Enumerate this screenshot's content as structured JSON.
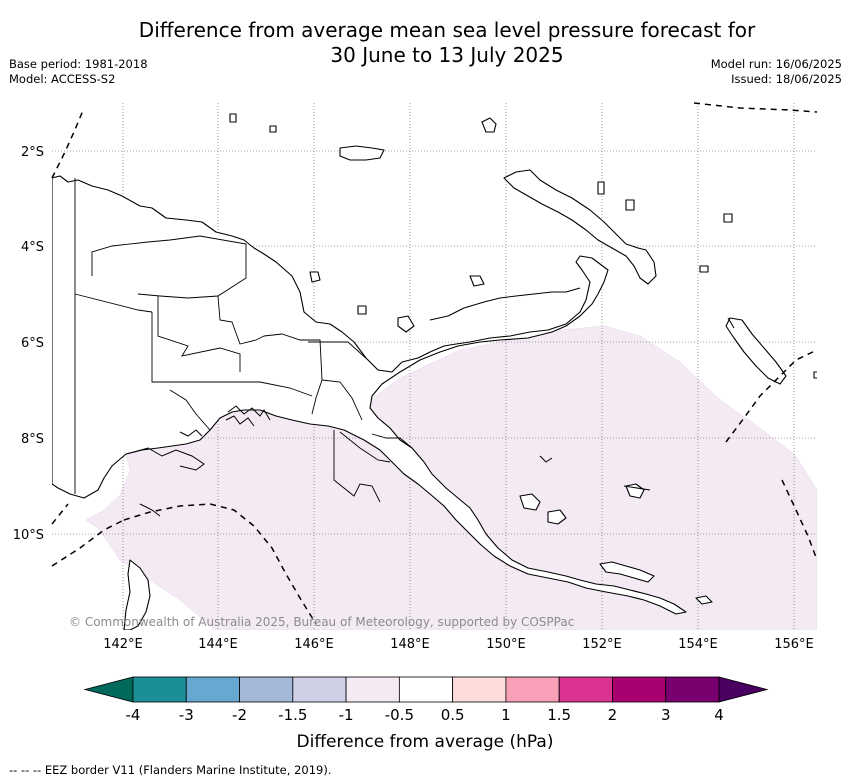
{
  "title_line1": "Difference from average mean sea level pressure forecast for",
  "title_line2": "30 June to 13 July 2025",
  "base_period": "Base period: 1981-2018",
  "model": "Model: ACCESS-S2",
  "model_run": "Model run: 16/06/2025",
  "issued": "Issued: 18/06/2025",
  "copyright": "© Commonwealth of Australia 2025, Bureau of Meteorology, supported by COSPPac",
  "latitude_labels": [
    "2°S",
    "4°S",
    "6°S",
    "8°S",
    "10°S"
  ],
  "longitude_labels": [
    "142°E",
    "144°E",
    "146°E",
    "148°E",
    "150°E",
    "152°E",
    "154°E",
    "156°E"
  ],
  "colorbar": {
    "label": "Difference from average (hPa)",
    "ticks": [
      "-4",
      "-3",
      "-2",
      "-1.5",
      "-1",
      "-0.5",
      "0.5",
      "1",
      "1.5",
      "2",
      "3",
      "4"
    ],
    "colors": [
      "#00695c",
      "#1a8f96",
      "#66a8d0",
      "#a4b8d8",
      "#cfd0e6",
      "#f3eaf4",
      "#ffffff",
      "#fddcdc",
      "#f8a0b8",
      "#dc3291",
      "#a8006f",
      "#7a0070",
      "#4a0060"
    ]
  },
  "footnote": "-- -- -- EEZ border V11 (Flanders Marine Institute, 2019).",
  "map": {
    "region": "Papua New Guinea",
    "anomaly_shading": "-1 to -0.5 hPa band over southern waters",
    "shading_color": "#f3eaf4"
  }
}
